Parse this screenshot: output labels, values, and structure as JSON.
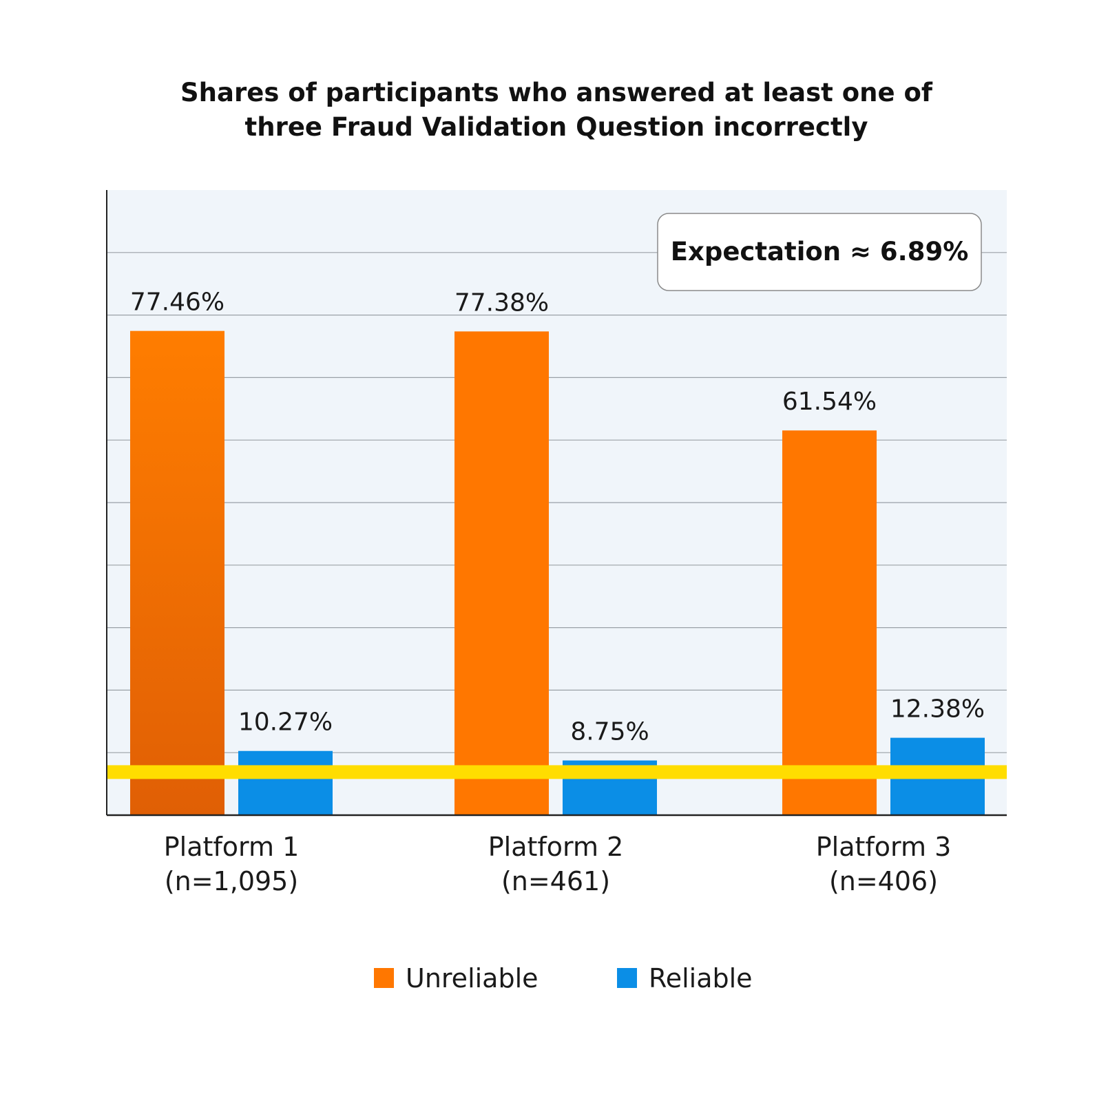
{
  "chart_data": {
    "type": "bar",
    "title": "Shares of participants who answered at least one of three Fraud Validation Question incorrectly",
    "title_lines": [
      "Shares of participants who answered at least one of",
      "three Fraud Validation Question incorrectly"
    ],
    "categories": [
      [
        "Platform 1",
        "(n=1,095)"
      ],
      [
        "Platform 2",
        "(n=461)"
      ],
      [
        "Platform 3",
        "(n=406)"
      ]
    ],
    "series": [
      {
        "name": "Unreliable",
        "color": "#ff7700",
        "values": [
          77.46,
          77.38,
          61.54
        ],
        "labels": [
          "77.46%",
          "77.38%",
          "61.54%"
        ]
      },
      {
        "name": "Reliable",
        "color": "#0b8ee6",
        "values": [
          10.27,
          8.75,
          12.38
        ],
        "labels": [
          "10.27%",
          "8.75%",
          "12.38%"
        ]
      }
    ],
    "reference_line": {
      "value": 6.89,
      "color": "#ffdd00",
      "label": "Expectation ≈ 6.89%"
    },
    "ylim": [
      0,
      100
    ],
    "gridlines": true,
    "grid_step": 10,
    "plot_background": "#f0f5fa",
    "legend": "bottom-center"
  }
}
